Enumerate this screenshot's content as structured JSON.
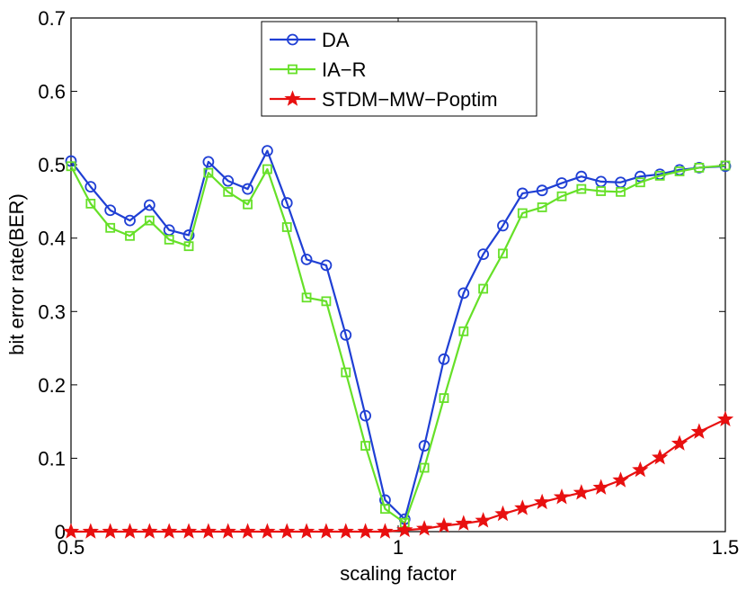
{
  "chart_data": {
    "type": "line",
    "title": "",
    "xlabel": "scaling factor",
    "ylabel": "bit error rate(BER)",
    "xlim": [
      0.5,
      1.5
    ],
    "ylim": [
      0,
      0.7
    ],
    "grid": false,
    "legend_position": "top-center",
    "xticks": [
      0.5,
      1,
      1.5
    ],
    "xtick_labels": [
      "0.5",
      "1",
      "1.5"
    ],
    "yticks": [
      0,
      0.1,
      0.2,
      0.3,
      0.4,
      0.5,
      0.6,
      0.7
    ],
    "ytick_labels": [
      "0",
      "0.1",
      "0.2",
      "0.3",
      "0.4",
      "0.5",
      "0.6",
      "0.7"
    ],
    "x": [
      0.5,
      0.53,
      0.56,
      0.59,
      0.62,
      0.65,
      0.68,
      0.71,
      0.74,
      0.77,
      0.8,
      0.83,
      0.86,
      0.89,
      0.92,
      0.95,
      0.98,
      1.01,
      1.04,
      1.07,
      1.1,
      1.13,
      1.16,
      1.19,
      1.22,
      1.25,
      1.28,
      1.31,
      1.34,
      1.37,
      1.4,
      1.43,
      1.46,
      1.5
    ],
    "series": [
      {
        "name": "DA",
        "color": "#1f3fd4",
        "marker": "circle",
        "values": [
          0.505,
          0.47,
          0.438,
          0.424,
          0.445,
          0.411,
          0.404,
          0.504,
          0.478,
          0.467,
          0.519,
          0.448,
          0.371,
          0.363,
          0.268,
          0.158,
          0.043,
          0.017,
          0.117,
          0.235,
          0.325,
          0.378,
          0.417,
          0.461,
          0.465,
          0.475,
          0.484,
          0.477,
          0.476,
          0.484,
          0.487,
          0.493,
          0.496,
          0.498
        ]
      },
      {
        "name": "IA−R",
        "color": "#66e028",
        "marker": "square",
        "values": [
          0.498,
          0.447,
          0.414,
          0.403,
          0.424,
          0.398,
          0.389,
          0.489,
          0.463,
          0.446,
          0.494,
          0.415,
          0.319,
          0.314,
          0.217,
          0.117,
          0.031,
          0.012,
          0.087,
          0.182,
          0.273,
          0.331,
          0.379,
          0.434,
          0.442,
          0.457,
          0.467,
          0.464,
          0.463,
          0.476,
          0.485,
          0.491,
          0.496,
          0.499
        ]
      },
      {
        "name": "STDM−MW−Poptim",
        "color": "#e81010",
        "marker": "star",
        "values": [
          0,
          0,
          0,
          0,
          0,
          0,
          0,
          0,
          0,
          0,
          0,
          0,
          0,
          0,
          0,
          0,
          0,
          0.002,
          0.004,
          0.008,
          0.011,
          0.015,
          0.024,
          0.032,
          0.04,
          0.047,
          0.053,
          0.06,
          0.07,
          0.084,
          0.101,
          0.12,
          0.136,
          0.153
        ]
      }
    ]
  }
}
